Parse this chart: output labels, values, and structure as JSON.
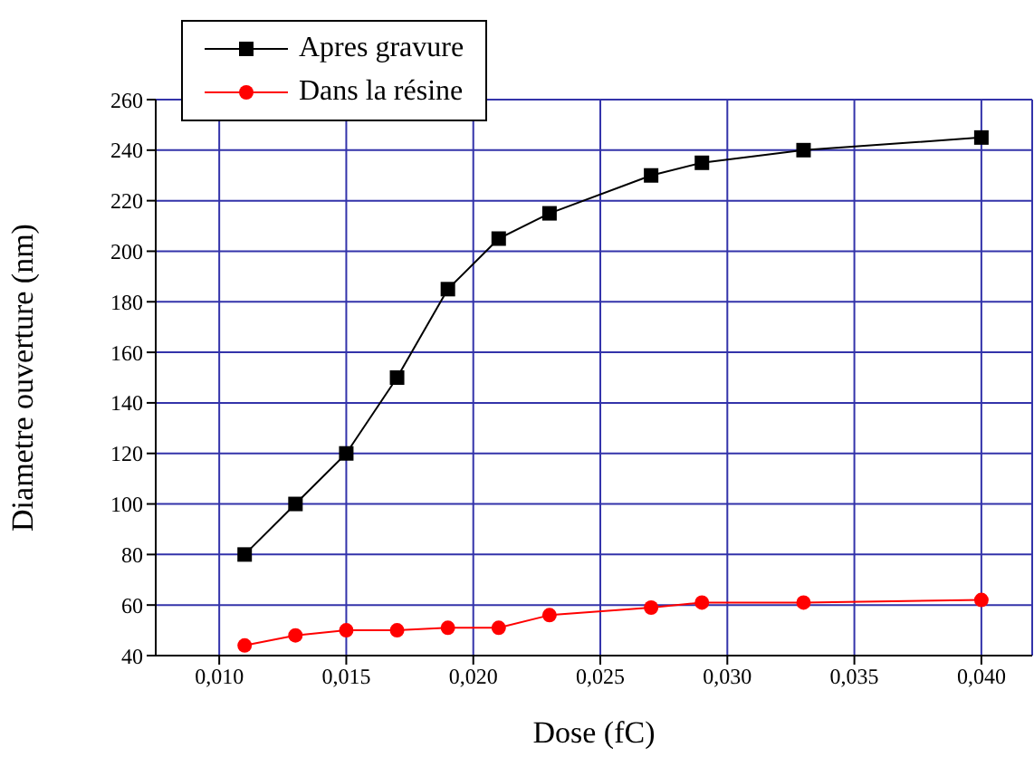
{
  "chart_data": {
    "type": "line",
    "xlabel": "Dose (fC)",
    "ylabel": "Diametre ouverture (nm)",
    "x": [
      0.011,
      0.013,
      0.015,
      0.017,
      0.019,
      0.021,
      0.023,
      0.027,
      0.029,
      0.033,
      0.04
    ],
    "series": [
      {
        "name": "Apres gravure",
        "color": "#000000",
        "marker": "square",
        "values": [
          80,
          100,
          120,
          150,
          185,
          205,
          215,
          230,
          235,
          240,
          245
        ]
      },
      {
        "name": "Dans la résine",
        "color": "#ff0000",
        "marker": "circle",
        "values": [
          44,
          48,
          50,
          50,
          51,
          51,
          56,
          59,
          61,
          61,
          62
        ]
      }
    ],
    "xlim": [
      0.0075,
      0.042
    ],
    "xticks": [
      {
        "value": 0.01,
        "label": "0,010"
      },
      {
        "value": 0.015,
        "label": "0,015"
      },
      {
        "value": 0.02,
        "label": "0,020"
      },
      {
        "value": 0.025,
        "label": "0,025"
      },
      {
        "value": 0.03,
        "label": "0,030"
      },
      {
        "value": 0.035,
        "label": "0,035"
      },
      {
        "value": 0.04,
        "label": "0,040"
      }
    ],
    "ylim": [
      40,
      260
    ],
    "yticks": [
      40,
      60,
      80,
      100,
      120,
      140,
      160,
      180,
      200,
      220,
      240,
      260
    ],
    "grid": true,
    "legend": "top left",
    "line_style": "solid"
  }
}
